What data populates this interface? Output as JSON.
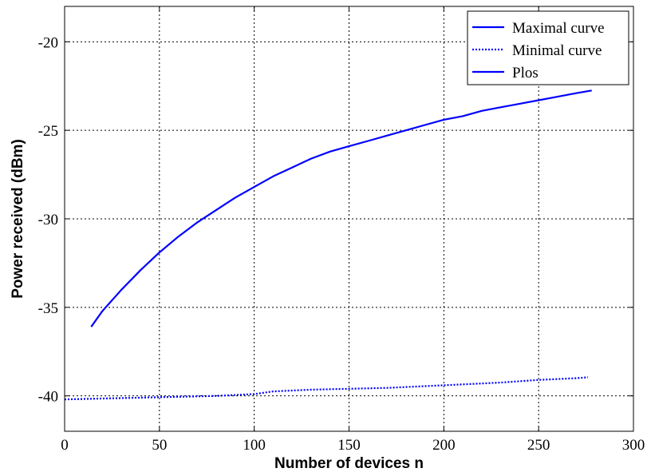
{
  "chart_data": {
    "type": "line",
    "title": "",
    "xlabel": "Number of devices n",
    "ylabel": "Power received (dBm)",
    "xlim": [
      0,
      300
    ],
    "ylim": [
      -42,
      -18
    ],
    "xticks": [
      0,
      50,
      100,
      150,
      200,
      250,
      300
    ],
    "yticks": [
      -40,
      -35,
      -30,
      -25,
      -20
    ],
    "xtick_labels": [
      "0",
      "50",
      "100",
      "150",
      "200",
      "250",
      "300"
    ],
    "ytick_labels": [
      "-40",
      "-35",
      "-30",
      "-25",
      "-20"
    ],
    "grid": true,
    "legend_position": "top-right",
    "series": [
      {
        "name": "Maximal curve",
        "color": "#0000ff",
        "dash": "solid",
        "x": [
          14,
          20,
          30,
          40,
          50,
          60,
          70,
          80,
          90,
          100,
          110,
          120,
          130,
          140,
          150,
          160,
          170,
          180,
          190,
          200,
          210,
          220,
          230,
          240,
          250,
          260,
          270,
          278
        ],
        "y": [
          -36.1,
          -35.2,
          -34.0,
          -32.9,
          -31.9,
          -31.0,
          -30.2,
          -29.5,
          -28.8,
          -28.2,
          -27.6,
          -27.1,
          -26.6,
          -26.2,
          -25.9,
          -25.6,
          -25.3,
          -25.0,
          -24.7,
          -24.4,
          -24.2,
          -23.9,
          -23.7,
          -23.5,
          -23.3,
          -23.1,
          -22.9,
          -22.75
        ]
      },
      {
        "name": "Minimal curve",
        "color": "#0000ff",
        "dash": "dotted",
        "x": [
          0,
          20,
          40,
          60,
          80,
          90,
          100,
          110,
          130,
          150,
          170,
          190,
          210,
          230,
          250,
          270,
          276
        ],
        "y": [
          -40.2,
          -40.15,
          -40.1,
          -40.05,
          -40.0,
          -39.95,
          -39.9,
          -39.75,
          -39.65,
          -39.6,
          -39.55,
          -39.45,
          -39.35,
          -39.25,
          -39.1,
          -39.0,
          -38.95
        ]
      },
      {
        "name": "Plos",
        "color": "#0000ff",
        "dash": "solid",
        "legend_only": true,
        "x": [],
        "y": []
      }
    ]
  }
}
